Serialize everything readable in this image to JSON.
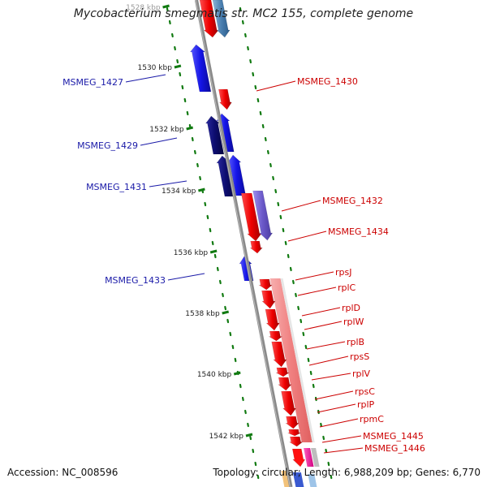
{
  "title": "Mycobacterium smegmatis str. MC2 155, complete genome",
  "accession": "Accession: NC_008596",
  "topology": "Topology: circular; Length: 6,988,209 bp; Genes: 6,770",
  "ticks": [
    {
      "label": "1528 kbp",
      "faded": true
    },
    {
      "label": "1530 kbp"
    },
    {
      "label": "1532 kbp"
    },
    {
      "label": "1534 kbp"
    },
    {
      "label": "1536 kbp"
    },
    {
      "label": "1538 kbp"
    },
    {
      "label": "1540 kbp"
    },
    {
      "label": "1542 kbp"
    }
  ],
  "left_labels": [
    "MSMEG_1427",
    "MSMEG_1429",
    "MSMEG_1431",
    "MSMEG_1433"
  ],
  "right_labels": [
    "MSMEG_1430",
    "MSMEG_1432",
    "MSMEG_1434",
    "rpsJ",
    "rplC",
    "rplD",
    "rplW",
    "rplB",
    "rpsS",
    "rplV",
    "rpsC",
    "rplP",
    "rpmC",
    "MSMEG_1445",
    "MSMEG_1446"
  ],
  "colors": {
    "forward_gene": "#e00000",
    "reverse_gene": "#1414e6",
    "reverse_dark": "#0c0c6e",
    "operon_band": "#f08c8c",
    "backbone": "#8a8a8a",
    "tick": "#117a11",
    "left_label": "#1a1aa8",
    "right_label": "#cc0000"
  }
}
